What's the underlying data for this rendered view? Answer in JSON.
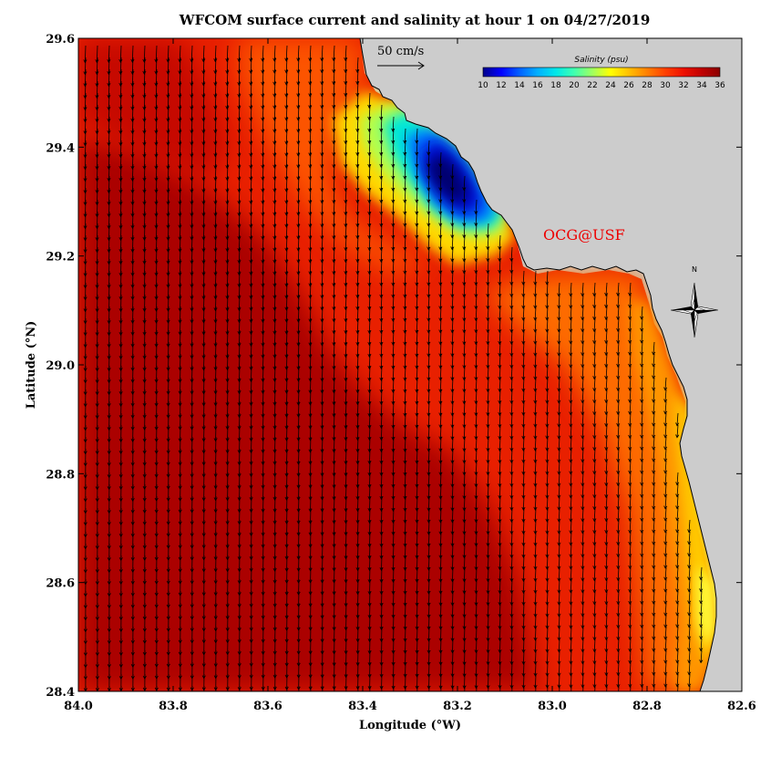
{
  "title": "WFCOM surface current and salinity at hour 1 on 04/27/2019",
  "xlabel": "Longitude (°W)",
  "ylabel": "Latitude (°N)",
  "x_ticks": [
    "84.0",
    "83.8",
    "83.6",
    "83.4",
    "83.2",
    "83.0",
    "82.8",
    "82.6"
  ],
  "y_ticks": [
    "29.6",
    "29.4",
    "29.2",
    "29.0",
    "28.8",
    "28.6",
    "28.4"
  ],
  "colorbar": {
    "title": "Salinity (psu)",
    "ticks": [
      "10",
      "12",
      "14",
      "16",
      "18",
      "20",
      "22",
      "24",
      "26",
      "28",
      "30",
      "32",
      "34",
      "36"
    ],
    "colors": [
      "#00008b",
      "#0000ff",
      "#0060ff",
      "#00b0ff",
      "#00e8e8",
      "#40ffb0",
      "#a0ff60",
      "#ffff00",
      "#ffc000",
      "#ff8000",
      "#ff4000",
      "#ee1000",
      "#c00000",
      "#8b0000"
    ]
  },
  "scale_arrow_label": "50 cm/s",
  "credit": "OCG@USF",
  "compass_label": "N",
  "colors": {
    "land": "#cccccc",
    "coast": "#000000",
    "arrows": "#000000"
  }
}
